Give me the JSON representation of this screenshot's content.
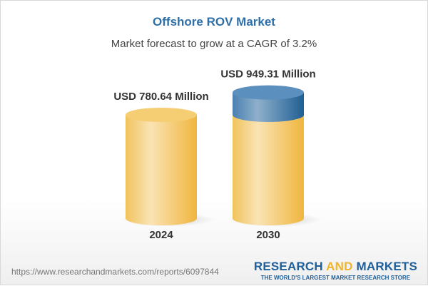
{
  "title": "Offshore ROV Market",
  "subtitle": "Market forecast to grow at a CAGR of 3.2%",
  "url": "https://www.researchandmarkets.com/reports/6097844",
  "logo": {
    "part1": "RESEARCH ",
    "part2": "AND",
    "part3": " MARKETS",
    "tagline": "THE WORLD'S LARGEST MARKET RESEARCH STORE"
  },
  "colors": {
    "title": "#2f6fa8",
    "base": "#f2c14e",
    "growth": "#3f79aa"
  },
  "chart_data": {
    "type": "bar",
    "style": "3d-cylinder",
    "categories": [
      "2024",
      "2030"
    ],
    "values": [
      780.64,
      949.31
    ],
    "data_labels": [
      "USD 780.64 Million",
      "USD 949.31 Million"
    ],
    "unit": "USD Million",
    "cagr": "3.2%"
  }
}
